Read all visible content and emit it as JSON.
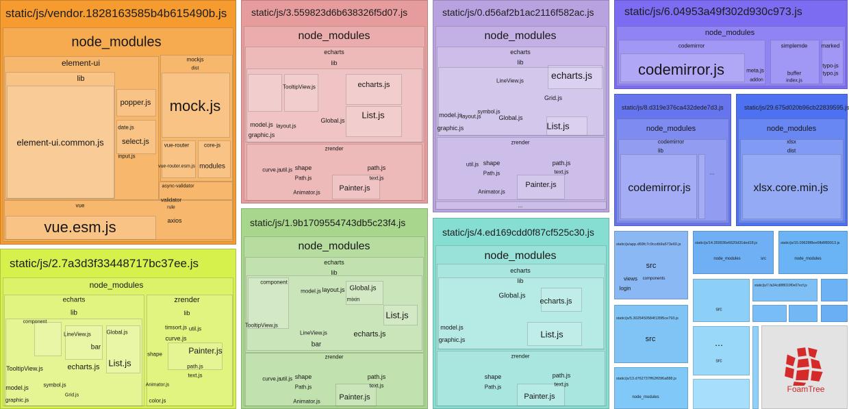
{
  "blocks": [
    {
      "title": "static/js/vendor.1828163585b4b615490b.js",
      "labels": [
        "node_modules",
        "element-ui",
        "lib",
        "element-ui.common.js",
        "popper.js",
        "date.js",
        "select.js",
        "input.js",
        "mockjs",
        "dist",
        "mock.js",
        "vue-router",
        "core-js",
        "modules",
        "vue-router.esm.js",
        "async-validator",
        "validator",
        "rule",
        "axios",
        "vue",
        "vue.esm.js"
      ]
    },
    {
      "title": "static/js/3.559823d6b638326f5d07.js",
      "labels": [
        "node_modules",
        "echarts",
        "lib",
        "TooltipView.js",
        "echarts.js",
        "List.js",
        "model.js",
        "graphic.js",
        "Global.js",
        "layout.js",
        "zrender",
        "shape",
        "Path.js",
        "Painter.js",
        "path.js",
        "text.js",
        "util.js",
        "curve.js",
        "Animator.js"
      ]
    },
    {
      "title": "static/js/0.d56af2b1ac2116f582ac.js",
      "labels": [
        "node_modules",
        "echarts",
        "lib",
        "echarts.js",
        "Grid.js",
        "List.js",
        "LineView.js",
        "model.js",
        "graphic.js",
        "Global.js",
        "layout.js",
        "symbol.js",
        "zrender",
        "shape",
        "Painter.js",
        "Path.js",
        "path.js",
        "text.js",
        "util.js",
        "Animator.js",
        "..."
      ]
    },
    {
      "title": "static/js/6.04953a49f302d930c973.js",
      "labels": [
        "node_modules",
        "codemirror",
        "codemirror.js",
        "simplemde",
        "marked",
        "buffer",
        "meta.js",
        "typo-js",
        "typo.js",
        "index.js",
        "addon"
      ]
    },
    {
      "title": "static/js/8.d319e376ca432dede7d3.js",
      "labels": [
        "node_modules",
        "codemirror",
        "lib",
        "codemirror.js",
        "..."
      ]
    },
    {
      "title": "static/js/29.675d020b96cb22839595.js",
      "labels": [
        "node_modules",
        "xlsx",
        "dist",
        "xlsx.core.min.js"
      ]
    },
    {
      "title": "static/js/2.7a3d3f33448717bc37ee.js",
      "labels": [
        "node_modules",
        "echarts",
        "lib",
        "zrender",
        "lib",
        "component",
        "TooltipView.js",
        "LineView.js",
        "echarts.js",
        "List.js",
        "Global.js",
        "bar",
        "model.js",
        "graphic.js",
        "symbol.js",
        "Grid.js",
        "timsort.js",
        "curve.js",
        "Painter.js",
        "path.js",
        "text.js",
        "util.js",
        "shape",
        "color.js",
        "Animator.js"
      ]
    },
    {
      "title": "static/js/1.9b1709554743db5c23f4.js",
      "labels": [
        "node_modules",
        "echarts",
        "lib",
        "component",
        "layout.js",
        "Global.js",
        "model.js",
        "List.js",
        "mixin",
        "echarts.js",
        "TooltipView.js",
        "LineView.js",
        "bar",
        "zrender",
        "shape",
        "Path.js",
        "Painter.js",
        "path.js",
        "text.js",
        "util.js",
        "curve.js",
        "Animator.js"
      ]
    },
    {
      "title": "static/js/4.ed169cdd0f87cf525c30.js",
      "labels": [
        "node_modules",
        "echarts",
        "lib",
        "Global.js",
        "echarts.js",
        "List.js",
        "model.js",
        "graphic.js",
        "zrender",
        "Painter.js",
        "shape",
        "Path.js",
        "path.js",
        "text.js"
      ]
    }
  ],
  "small_blocks": [
    {
      "title": "static/js/app.d69fc7c9ccdb9a573e60.js",
      "labels": [
        "src",
        "views",
        "components",
        "login"
      ]
    },
    {
      "title": "static/js/5.3025450584f135f5ce793.js",
      "labels": [
        "src"
      ]
    },
    {
      "title": "static/js/13.d762737ff62f65f6a888.js",
      "labels": [
        "node_modules"
      ]
    },
    {
      "title": "static/js/14.359936e6620d31ded18.js",
      "labels": [
        "node_modules",
        "src"
      ]
    },
    {
      "title": "static/js/15.09628f8ee6fb8f89913.js",
      "labels": [
        "node_modules"
      ]
    },
    {
      "labels": [
        "src"
      ]
    },
    {
      "title": "static/js/7.fa34cd8f8010f0e07ecf.js",
      "labels": []
    },
    {
      "labels": [
        "...",
        "src"
      ]
    }
  ],
  "logo": "FoamTree"
}
